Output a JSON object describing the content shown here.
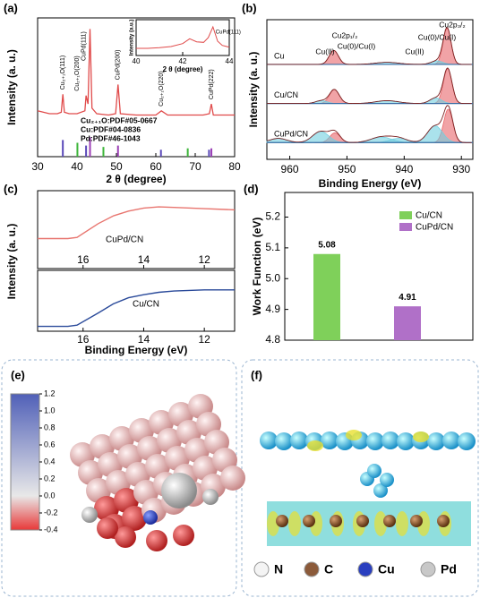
{
  "chart_data": [
    {
      "type": "line",
      "panel": "(a)",
      "xlabel": "2 θ (degree)",
      "ylabel": "Intensity (a. u.)",
      "xlim": [
        30,
        80
      ],
      "xticks": [
        30,
        40,
        50,
        60,
        70,
        80
      ],
      "ylim": [
        0,
        100
      ],
      "series": [
        {
          "color": "#e04a4a",
          "x": [
            30,
            33,
            35,
            36,
            36.4,
            36.8,
            38,
            40,
            42,
            42.3,
            42.8,
            43.3,
            43.8,
            45,
            48,
            49.8,
            50.4,
            51,
            55,
            60,
            61.4,
            63,
            68,
            72,
            73.6,
            74.1,
            74.6,
            77,
            80
          ],
          "values": [
            33,
            31,
            31,
            32,
            45,
            32,
            31,
            31,
            33,
            44,
            38,
            92,
            35,
            31,
            30,
            31,
            52,
            31,
            30,
            30,
            33,
            30,
            30,
            30,
            31,
            38,
            30,
            30,
            30
          ]
        }
      ],
      "references": [
        {
          "name": "Cu₂₊₁O:PDF#05-0667",
          "color": "#5a48b8",
          "x": [
            36.4,
            42.3,
            61.3,
            73.5
          ],
          "values": [
            12,
            8,
            5,
            5
          ]
        },
        {
          "name": "Cu:PDF#04-0836",
          "color": "#9b3fb5",
          "x": [
            43.3,
            50.4,
            74.1
          ],
          "values": [
            14,
            8,
            6
          ]
        },
        {
          "name": "Pd:PDF#46-1043",
          "color": "#3db53a",
          "x": [
            40.1,
            46.7,
            68.1
          ],
          "values": [
            10,
            7,
            6
          ]
        }
      ],
      "annotations": [
        {
          "text": "Cu₂₊₁O(111)",
          "x": 36.4
        },
        {
          "text": "Cu₂₊₁O(200)",
          "x": 42.3
        },
        {
          "text": "CuPd(111)",
          "x": 43.3
        },
        {
          "text": "CuPd(200)",
          "x": 50.4
        },
        {
          "text": "Cu₂₊₁O(220)",
          "x": 61.4
        },
        {
          "text": "CuPd(222)",
          "x": 74.1
        }
      ],
      "inset": {
        "xlabel": "2 θ (degree)",
        "ylabel": "Intensity (a.u.)",
        "xlim": [
          40,
          44
        ],
        "xticks": [
          40,
          42,
          44
        ],
        "ylim": [
          10,
          70
        ],
        "x": [
          40,
          40.5,
          41,
          41.5,
          42,
          42.3,
          42.6,
          42.9,
          43.1,
          43.3,
          43.5,
          43.7,
          44
        ],
        "values": [
          22,
          22,
          23,
          25,
          30,
          38,
          33,
          32,
          40,
          58,
          34,
          27,
          24
        ],
        "annotation": "CuPd(111)"
      }
    },
    {
      "type": "area",
      "panel": "(b)",
      "xlabel": "Binding Energy (eV)",
      "ylabel": "Intensity (a. u.)",
      "xlim": [
        964,
        928
      ],
      "xticks": [
        960,
        950,
        940,
        930
      ],
      "ylim": [
        0,
        100
      ],
      "series": [
        {
          "name": "Cu",
          "baseline": 68,
          "peaks": [
            {
              "center": 932.5,
              "height": 26,
              "width": 0.7,
              "color": "#e8666a"
            },
            {
              "center": 952.3,
              "height": 10,
              "width": 0.8,
              "color": "#e8666a"
            },
            {
              "center": 934.3,
              "height": 2.5,
              "width": 1,
              "color": "#72cfe0"
            },
            {
              "center": 943,
              "height": 1.5,
              "width": 2,
              "color": "#72cfe0"
            }
          ]
        },
        {
          "name": "Cu/CN",
          "baseline": 40,
          "peaks": [
            {
              "center": 932.4,
              "height": 25,
              "width": 0.75,
              "color": "#e8666a"
            },
            {
              "center": 934.5,
              "height": 4,
              "width": 1,
              "color": "#72cfe0"
            },
            {
              "center": 952.2,
              "height": 10,
              "width": 0.85,
              "color": "#e8666a"
            },
            {
              "center": 954.5,
              "height": 2,
              "width": 1,
              "color": "#72cfe0"
            },
            {
              "center": 943,
              "height": 2,
              "width": 2,
              "color": "#72cfe0"
            }
          ]
        },
        {
          "name": "CuPd/CN",
          "baseline": 12,
          "peaks": [
            {
              "center": 932.3,
              "height": 24,
              "width": 0.8,
              "color": "#e8666a"
            },
            {
              "center": 934.6,
              "height": 12,
              "width": 1.3,
              "color": "#72cfe0"
            },
            {
              "center": 952.1,
              "height": 7,
              "width": 0.9,
              "color": "#e8666a"
            },
            {
              "center": 954.6,
              "height": 8,
              "width": 1.4,
              "color": "#72cfe0"
            },
            {
              "center": 941,
              "height": 3,
              "width": 1.5,
              "color": "#72cfe0"
            },
            {
              "center": 944,
              "height": 4,
              "width": 1.8,
              "color": "#72cfe0"
            },
            {
              "center": 962,
              "height": 3,
              "width": 1.5,
              "color": "#72cfe0"
            }
          ]
        }
      ],
      "annotations": [
        "Cu(II)",
        "Cu2p₁/₂",
        "Cu(0)/Cu(I)",
        "Cu(II)",
        "Cu(0)/Cu(I)",
        "Cu2p₃/₂"
      ]
    },
    {
      "type": "line",
      "panel": "(c)",
      "subplots": true,
      "xlabel": "Binding Energy (eV)",
      "ylabel": "Intensity (a. u.)",
      "xlim": [
        17.5,
        11
      ],
      "xticks": [
        16,
        14,
        12
      ],
      "series": [
        {
          "name": "CuPd/CN",
          "color": "#e8756f",
          "ylim": [
            -30,
            100
          ],
          "x": [
            17.5,
            16.5,
            16.2,
            15.5,
            15,
            14.5,
            14,
            13.5,
            13,
            12,
            11
          ],
          "values": [
            20,
            20,
            22,
            45,
            58,
            66,
            71,
            73,
            72,
            70,
            68
          ]
        },
        {
          "name": "Cu/CN",
          "color": "#2a4a9a",
          "ylim": [
            0,
            100
          ],
          "x": [
            17.5,
            16.5,
            16.2,
            15.5,
            15,
            14.5,
            14,
            13.5,
            13,
            12,
            11
          ],
          "values": [
            8,
            8,
            10,
            30,
            45,
            55,
            60,
            64,
            66,
            68,
            68
          ]
        }
      ]
    },
    {
      "type": "bar",
      "panel": "(d)",
      "ylabel": "Work Function (eV)",
      "categories": [
        "Cu/CN",
        "CuPd/CN"
      ],
      "values": [
        5.08,
        4.91
      ],
      "value_labels": [
        "5.08",
        "4.91"
      ],
      "colors": [
        "#7fd05a",
        "#b070c8"
      ],
      "ylim": [
        4.8,
        5.28
      ],
      "yticks": [
        4.8,
        4.9,
        {
          "value": 5,
          "label": "5.0"
        },
        5.1,
        5.2
      ],
      "legend": "upper right"
    },
    {
      "type": "colorbar",
      "panel": "(e)",
      "clim": [
        -0.4,
        1.2
      ],
      "ticks": [
        1.2,
        {
          "value": 1,
          "label": "1.0"
        },
        0.8,
        0.6,
        0.4,
        0.2,
        {
          "value": 0,
          "label": "0.0"
        },
        -0.2,
        -0.4
      ],
      "colors": [
        "#e83838",
        "#e8e8e8",
        "#5060b8"
      ]
    },
    {
      "type": "image",
      "panel": "(f)",
      "legend": [
        {
          "label": "N",
          "color": "#f4f4f4"
        },
        {
          "label": "C",
          "color": "#8b5a3a"
        },
        {
          "label": "Cu",
          "color": "#2a3fbf"
        },
        {
          "label": "Pd",
          "color": "#c8c8c8"
        }
      ]
    }
  ]
}
